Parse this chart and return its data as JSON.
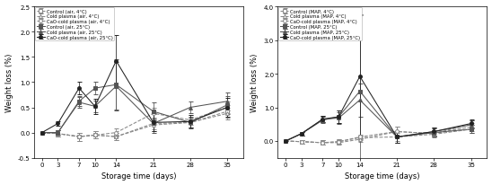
{
  "x": [
    0,
    3,
    7,
    10,
    14,
    21,
    28,
    35
  ],
  "panel_A": {
    "ylabel": "Weight loss (%)",
    "xlabel": "Storage time (days)",
    "ylim": [
      -0.5,
      2.5
    ],
    "yticks": [
      -0.5,
      0.0,
      0.5,
      1.0,
      1.5,
      2.0,
      2.5
    ],
    "series": [
      {
        "label": "Control (air, 4°C)",
        "y": [
          0.0,
          -0.02,
          -0.08,
          -0.05,
          -0.08,
          0.18,
          0.2,
          0.42
        ],
        "yerr": [
          0.0,
          0.06,
          0.08,
          0.07,
          0.07,
          0.12,
          0.1,
          0.12
        ],
        "marker": "s",
        "fillstyle": "none",
        "color": "#888888",
        "linestyle": "--"
      },
      {
        "label": "Cold plasma (air, 4°C)",
        "y": [
          0.0,
          -0.02,
          -0.08,
          -0.05,
          -0.08,
          0.15,
          0.2,
          0.38
        ],
        "yerr": [
          0.0,
          0.06,
          0.08,
          0.07,
          0.07,
          0.12,
          0.1,
          0.12
        ],
        "marker": "^",
        "fillstyle": "none",
        "color": "#888888",
        "linestyle": "--"
      },
      {
        "label": "CaO-cold plasma (air, 4°C)",
        "y": [
          0.0,
          -0.02,
          -0.08,
          -0.05,
          0.0,
          0.38,
          0.25,
          0.5
        ],
        "yerr": [
          0.0,
          0.06,
          0.08,
          0.07,
          0.08,
          0.12,
          0.1,
          0.12
        ],
        "marker": "o",
        "fillstyle": "none",
        "color": "#888888",
        "linestyle": "--"
      },
      {
        "label": "Control (air, 25°C)",
        "y": [
          0.0,
          0.0,
          0.62,
          0.88,
          0.95,
          0.42,
          0.2,
          0.55
        ],
        "yerr": [
          0.0,
          0.04,
          0.1,
          0.12,
          0.5,
          0.18,
          0.12,
          0.18
        ],
        "marker": "s",
        "fillstyle": "full",
        "color": "#555555",
        "linestyle": "-"
      },
      {
        "label": "Cold plasma (air, 25°C)",
        "y": [
          0.0,
          0.0,
          0.6,
          0.52,
          0.92,
          0.18,
          0.5,
          0.62
        ],
        "yerr": [
          0.0,
          0.04,
          0.1,
          0.12,
          0.48,
          0.18,
          0.12,
          0.18
        ],
        "marker": "^",
        "fillstyle": "full",
        "color": "#555555",
        "linestyle": "-"
      },
      {
        "label": "CaO-cold plasma (air, 25°C)",
        "y": [
          0.0,
          0.18,
          0.88,
          0.52,
          1.42,
          0.2,
          0.22,
          0.5
        ],
        "yerr": [
          0.0,
          0.04,
          0.12,
          0.15,
          0.52,
          0.18,
          0.12,
          0.18
        ],
        "marker": "o",
        "fillstyle": "full",
        "color": "#222222",
        "linestyle": "-"
      }
    ]
  },
  "panel_B": {
    "ylabel": "Weight loss (%)",
    "xlabel": "Storage time (days)",
    "ylim": [
      -0.5,
      4.0
    ],
    "yticks": [
      0.0,
      1.0,
      2.0,
      3.0,
      4.0
    ],
    "series": [
      {
        "label": "Control (MAP, 4°C)",
        "y": [
          0.0,
          -0.02,
          -0.05,
          -0.02,
          0.1,
          0.12,
          0.2,
          0.35
        ],
        "yerr": [
          0.0,
          0.05,
          0.07,
          0.07,
          0.07,
          0.12,
          0.1,
          0.12
        ],
        "marker": "s",
        "fillstyle": "none",
        "color": "#888888",
        "linestyle": "--"
      },
      {
        "label": "Cold plasma (MAP, 4°C)",
        "y": [
          0.0,
          -0.02,
          -0.05,
          -0.05,
          0.05,
          0.28,
          0.22,
          0.42
        ],
        "yerr": [
          0.0,
          0.05,
          0.07,
          0.07,
          0.07,
          0.15,
          0.1,
          0.12
        ],
        "marker": "^",
        "fillstyle": "none",
        "color": "#888888",
        "linestyle": "--"
      },
      {
        "label": "CaO-cold plasma (MAP, 4°C)",
        "y": [
          0.0,
          -0.02,
          -0.05,
          -0.02,
          0.12,
          0.28,
          0.22,
          0.5
        ],
        "yerr": [
          0.0,
          0.05,
          0.07,
          0.07,
          0.07,
          0.15,
          0.1,
          0.12
        ],
        "marker": "o",
        "fillstyle": "none",
        "color": "#888888",
        "linestyle": "--"
      },
      {
        "label": "Control (MAP, 25°C)",
        "y": [
          0.0,
          0.22,
          0.62,
          0.72,
          1.48,
          0.12,
          0.25,
          0.35
        ],
        "yerr": [
          0.0,
          0.05,
          0.1,
          0.18,
          2.25,
          0.18,
          0.12,
          0.12
        ],
        "marker": "s",
        "fillstyle": "full",
        "color": "#555555",
        "linestyle": "-"
      },
      {
        "label": "Cold plasma (MAP, 25°C)",
        "y": [
          0.0,
          0.22,
          0.65,
          0.68,
          1.22,
          0.12,
          0.28,
          0.48
        ],
        "yerr": [
          0.0,
          0.05,
          0.1,
          0.18,
          0.5,
          0.18,
          0.12,
          0.12
        ],
        "marker": "^",
        "fillstyle": "full",
        "color": "#555555",
        "linestyle": "-"
      },
      {
        "label": "CaO-cold plasma (MAP, 25°C)",
        "y": [
          0.0,
          0.22,
          0.65,
          0.72,
          1.92,
          0.12,
          0.28,
          0.52
        ],
        "yerr": [
          0.0,
          0.05,
          0.1,
          0.18,
          1.85,
          0.18,
          0.12,
          0.12
        ],
        "marker": "o",
        "fillstyle": "full",
        "color": "#222222",
        "linestyle": "-"
      }
    ]
  }
}
